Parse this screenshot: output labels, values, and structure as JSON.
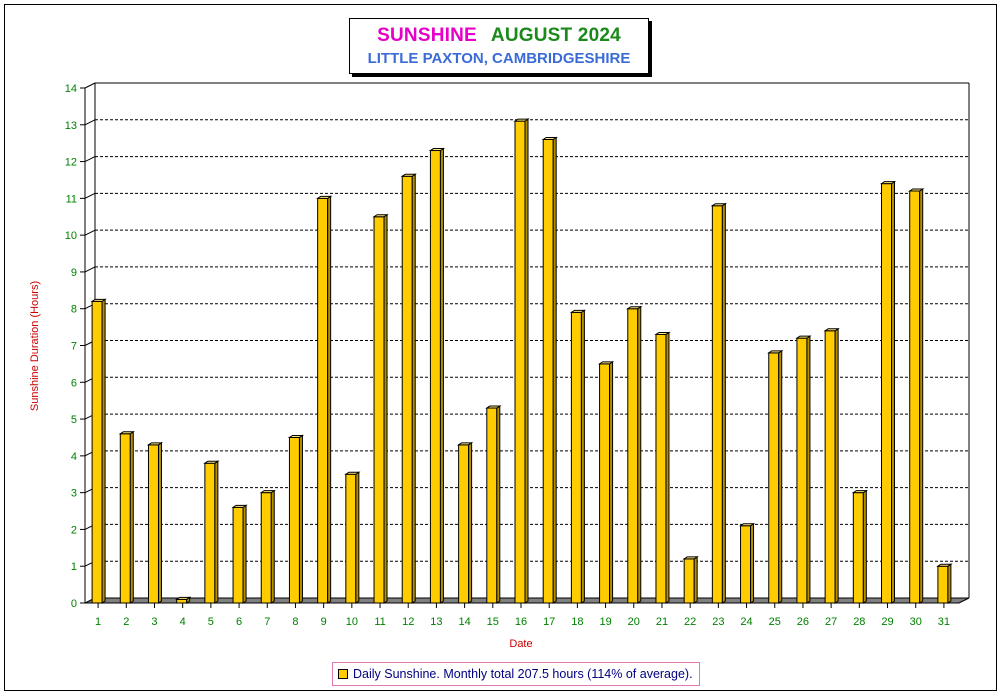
{
  "chart_data": {
    "type": "bar",
    "title": "SUNSHINE",
    "title_period": "AUGUST 2024",
    "subtitle": "LITTLE PAXTON, CAMBRIDGESHIRE",
    "xlabel": "Date",
    "ylabel": "Sunshine Duration (Hours)",
    "ylim": [
      0,
      14
    ],
    "yticks": [
      0,
      1,
      2,
      3,
      4,
      5,
      6,
      7,
      8,
      9,
      10,
      11,
      12,
      13,
      14
    ],
    "grid": true,
    "legend_position": "bottom-center",
    "categories": [
      "1",
      "2",
      "3",
      "4",
      "5",
      "6",
      "7",
      "8",
      "9",
      "10",
      "11",
      "12",
      "13",
      "14",
      "15",
      "16",
      "17",
      "18",
      "19",
      "20",
      "21",
      "22",
      "23",
      "24",
      "25",
      "26",
      "27",
      "28",
      "29",
      "30",
      "31"
    ],
    "series": [
      {
        "name": "Daily Sunshine. Monthly total 207.5 hours (114% of average).",
        "values": [
          8.2,
          4.6,
          4.3,
          0.1,
          3.8,
          2.6,
          3.0,
          4.5,
          11.0,
          3.5,
          10.5,
          11.6,
          12.3,
          4.3,
          5.3,
          13.1,
          12.6,
          7.9,
          6.5,
          8.0,
          7.3,
          1.2,
          10.8,
          2.1,
          6.8,
          7.2,
          7.4,
          3.0,
          11.4,
          11.2,
          1.0
        ]
      }
    ],
    "colors": {
      "bar": "#ffcc00",
      "bar_side": "#b38f00",
      "bar_top": "#ffe680",
      "floor": "#808080",
      "ylabel": "#cc0000",
      "xlabel": "#cc0000",
      "ticks": "#008000",
      "grid": "#000000"
    }
  }
}
